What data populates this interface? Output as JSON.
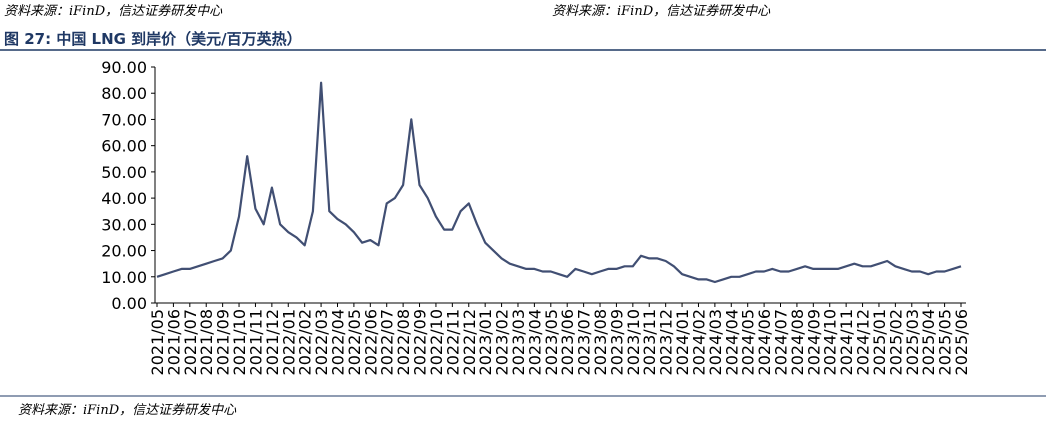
{
  "header": {
    "source_left": "资料来源：iFinD，信达证券研发中心",
    "source_right": "资料来源：iFinD，信达证券研发中心",
    "figure_title": "图 27:  中国 LNG 到岸价（美元/百万英热）"
  },
  "chart_data": {
    "type": "line",
    "categories": [
      "2021/05",
      null,
      "2021/06",
      null,
      "2021/07",
      null,
      "2021/08",
      null,
      "2021/09",
      null,
      "2021/10",
      null,
      "2021/11",
      null,
      "2021/12",
      null,
      "2022/01",
      null,
      "2022/02",
      null,
      "2022/03",
      null,
      "2022/04",
      null,
      "2022/05",
      null,
      "2022/06",
      null,
      "2022/07",
      null,
      "2022/08",
      null,
      "2022/09",
      null,
      "2022/10",
      null,
      "2022/11",
      null,
      "2022/12",
      null,
      "2023/01",
      null,
      "2023/02",
      null,
      "2023/03",
      null,
      "2023/04",
      null,
      "2023/05",
      null,
      "2023/06",
      null,
      "2023/07",
      null,
      "2023/08",
      null,
      "2023/09",
      null,
      "2023/10",
      null,
      "2023/11",
      null,
      "2023/12",
      null,
      "2024/01",
      null,
      "2024/02",
      null,
      "2024/03",
      null,
      "2024/04",
      null,
      "2024/05",
      null,
      "2024/06",
      null,
      "2024/07",
      null,
      "2024/08",
      null,
      "2024/09",
      null,
      "2024/10",
      null,
      "2024/11",
      null,
      "2024/12",
      null,
      "2025/01",
      null,
      "2025/02",
      null,
      "2025/03",
      null,
      "2025/04",
      null,
      "2025/05",
      null,
      "2025/06"
    ],
    "series": [
      {
        "name": "中国 LNG 到岸价",
        "color": "#414f73",
        "values": [
          10,
          11,
          12,
          13,
          13,
          14,
          15,
          16,
          17,
          20,
          33,
          56,
          36,
          30,
          44,
          30,
          27,
          25,
          22,
          35,
          84,
          35,
          32,
          30,
          27,
          23,
          24,
          22,
          38,
          40,
          45,
          70,
          45,
          40,
          33,
          28,
          28,
          35,
          38,
          30,
          23,
          20,
          17,
          15,
          14,
          13,
          13,
          12,
          12,
          11,
          10,
          13,
          12,
          11,
          12,
          13,
          13,
          14,
          14,
          18,
          17,
          17,
          16,
          14,
          11,
          10,
          9,
          9,
          8,
          9,
          10,
          10,
          11,
          12,
          12,
          13,
          12,
          12,
          13,
          14,
          13,
          13,
          13,
          13,
          14,
          15,
          14,
          14,
          15,
          16,
          14,
          13,
          12,
          12,
          11,
          12,
          12,
          13,
          14
        ]
      }
    ],
    "ylim": [
      0,
      90
    ],
    "yticks": [
      {
        "value": 0,
        "label": "0.00"
      },
      {
        "value": 10,
        "label": "10.00"
      },
      {
        "value": 20,
        "label": "20.00"
      },
      {
        "value": 30,
        "label": "30.00"
      },
      {
        "value": 40,
        "label": "40.00"
      },
      {
        "value": 50,
        "label": "50.00"
      },
      {
        "value": 60,
        "label": "60.00"
      },
      {
        "value": 70,
        "label": "70.00"
      },
      {
        "value": 80,
        "label": "80.00"
      },
      {
        "value": 90,
        "label": "90.00"
      }
    ]
  },
  "footer": {
    "source": "资料来源：iFinD，信达证券研发中心"
  }
}
